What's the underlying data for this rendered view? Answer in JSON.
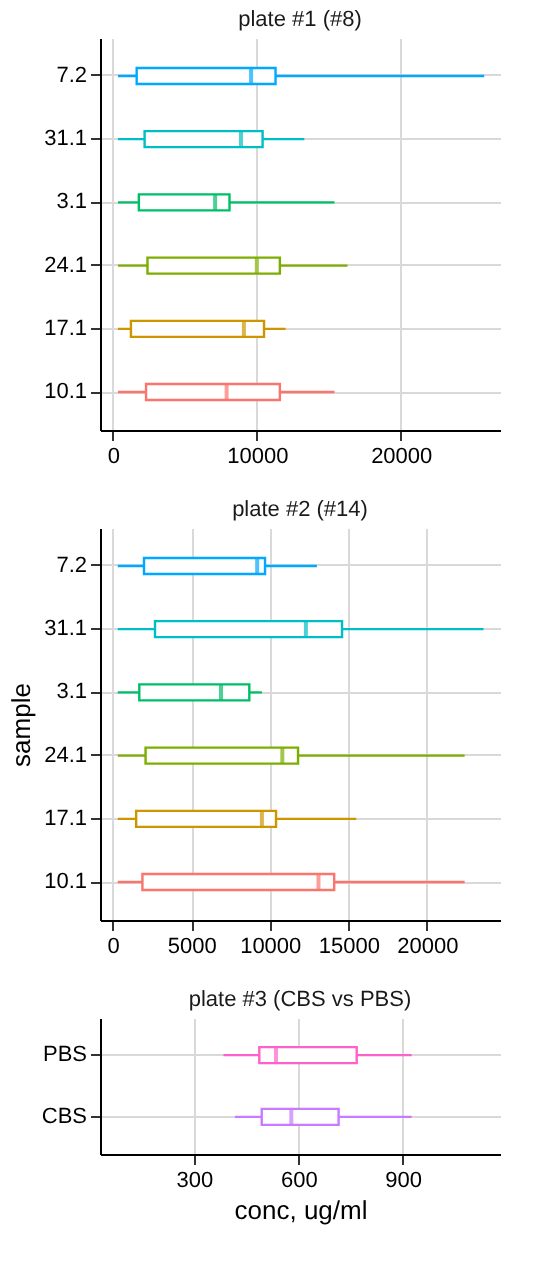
{
  "chart_data": [
    {
      "type": "box",
      "title": "plate #1 (#8)",
      "orientation": "horizontal",
      "grid": true,
      "categories": [
        "7.2",
        "31.1",
        "3.1",
        "24.1",
        "17.1",
        "10.1"
      ],
      "colors": [
        "#00a9ff",
        "#00bfc4",
        "#00be67",
        "#7cae00",
        "#cd9600",
        "#f8766d"
      ],
      "boxes": [
        {
          "low": 350,
          "q1": 1650,
          "median": 9600,
          "q3": 11300,
          "high": 25800
        },
        {
          "low": 350,
          "q1": 2200,
          "median": 8900,
          "q3": 10400,
          "high": 13300
        },
        {
          "low": 350,
          "q1": 1800,
          "median": 7100,
          "q3": 8100,
          "high": 15400
        },
        {
          "low": 350,
          "q1": 2400,
          "median": 10000,
          "q3": 11600,
          "high": 16300
        },
        {
          "low": 350,
          "q1": 1250,
          "median": 9100,
          "q3": 10500,
          "high": 12000
        },
        {
          "low": 350,
          "q1": 2300,
          "median": 7900,
          "q3": 11600,
          "high": 15400
        }
      ],
      "xlim": [
        -900,
        26900
      ],
      "xticks": [
        0,
        10000,
        20000
      ]
    },
    {
      "type": "box",
      "title": "plate #2 (#14)",
      "ylabel": "sample",
      "orientation": "horizontal",
      "grid": true,
      "categories": [
        "7.2",
        "31.1",
        "3.1",
        "24.1",
        "17.1",
        "10.1"
      ],
      "colors": [
        "#00a9ff",
        "#00bfc4",
        "#00be67",
        "#7cae00",
        "#cd9600",
        "#f8766d"
      ],
      "boxes": [
        {
          "low": 330,
          "q1": 2000,
          "median": 9200,
          "q3": 9700,
          "high": 13000
        },
        {
          "low": 330,
          "q1": 2700,
          "median": 12300,
          "q3": 14600,
          "high": 23600
        },
        {
          "low": 330,
          "q1": 1700,
          "median": 6900,
          "q3": 8700,
          "high": 9500
        },
        {
          "low": 330,
          "q1": 2100,
          "median": 10800,
          "q3": 11800,
          "high": 22400
        },
        {
          "low": 330,
          "q1": 1500,
          "median": 9500,
          "q3": 10400,
          "high": 15500
        },
        {
          "low": 330,
          "q1": 1900,
          "median": 13100,
          "q3": 14100,
          "high": 22400
        }
      ],
      "xlim": [
        -800,
        24650
      ],
      "xticks": [
        0,
        5000,
        10000,
        15000,
        20000
      ]
    },
    {
      "type": "box",
      "title": "plate #3 (CBS vs PBS)",
      "xlabel": "conc, ug/ml",
      "orientation": "horizontal",
      "grid": true,
      "categories": [
        "PBS",
        "CBS"
      ],
      "colors": [
        "#ff61cc",
        "#c77cff"
      ],
      "boxes": [
        {
          "low": 385,
          "q1": 488,
          "median": 536,
          "q3": 768,
          "high": 926
        },
        {
          "low": 418,
          "q1": 495,
          "median": 580,
          "q3": 716,
          "high": 926
        }
      ],
      "xlim": [
        30,
        1180
      ],
      "xticks": [
        300,
        600,
        900
      ]
    }
  ]
}
